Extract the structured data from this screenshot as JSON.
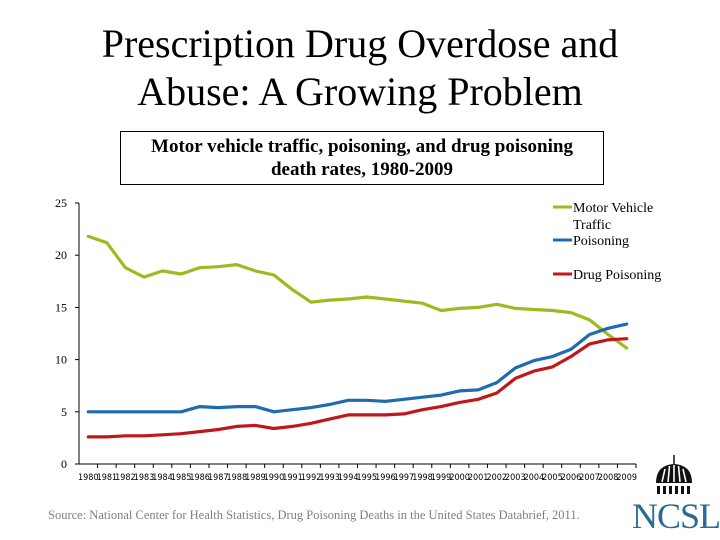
{
  "slide": {
    "title_line1": "Prescription Drug Overdose and",
    "title_line2": "Abuse: A Growing Problem",
    "source": "Source: National Center for Health Statistics, Drug Poisoning Deaths in the United States Databrief, 2011.",
    "logo_text": "NCSL",
    "logo_color": "#2a6b96"
  },
  "chart_data": {
    "type": "line",
    "title_line1": "Motor vehicle traffic, poisoning, and drug poisoning",
    "title_line2": "death rates, 1980-2009",
    "xlabel": "",
    "ylabel": "",
    "ylim": [
      0,
      25
    ],
    "yticks": [
      0,
      5,
      10,
      15,
      20,
      25
    ],
    "grid": false,
    "legend_position": "top-right",
    "categories": [
      "1980",
      "1981",
      "1982",
      "1983",
      "1984",
      "1985",
      "1986",
      "1987",
      "1988",
      "1989",
      "1990",
      "1991",
      "1992",
      "1993",
      "1994",
      "1995",
      "1996",
      "1997",
      "1998",
      "1999",
      "2000",
      "2001",
      "2002",
      "2003",
      "2004",
      "2005",
      "2006",
      "2007",
      "2008",
      "2009"
    ],
    "series": [
      {
        "name": "Motor Vehicle Traffic",
        "color": "#9bbb1f",
        "values": [
          21.8,
          21.2,
          18.8,
          17.9,
          18.5,
          18.2,
          18.8,
          18.9,
          19.1,
          18.5,
          18.1,
          16.7,
          15.5,
          15.7,
          15.8,
          16.0,
          15.8,
          15.6,
          15.4,
          14.7,
          14.9,
          15.0,
          15.3,
          14.9,
          14.8,
          14.7,
          14.5,
          13.8,
          12.4,
          11.1
        ]
      },
      {
        "name": "Poisoning",
        "color": "#1f6bb0",
        "values": [
          5.0,
          5.0,
          5.0,
          5.0,
          5.0,
          5.0,
          5.5,
          5.4,
          5.5,
          5.5,
          5.0,
          5.2,
          5.4,
          5.7,
          6.1,
          6.1,
          6.0,
          6.2,
          6.4,
          6.6,
          7.0,
          7.1,
          7.8,
          9.2,
          9.9,
          10.3,
          11.0,
          12.4,
          13.0,
          13.4
        ]
      },
      {
        "name": "Drug Poisoning",
        "color": "#c0171c",
        "values": [
          2.6,
          2.6,
          2.7,
          2.7,
          2.8,
          2.9,
          3.1,
          3.3,
          3.6,
          3.7,
          3.4,
          3.6,
          3.9,
          4.3,
          4.7,
          4.7,
          4.7,
          4.8,
          5.2,
          5.5,
          5.9,
          6.2,
          6.8,
          8.2,
          8.9,
          9.3,
          10.3,
          11.5,
          11.9,
          12.0
        ]
      }
    ]
  }
}
